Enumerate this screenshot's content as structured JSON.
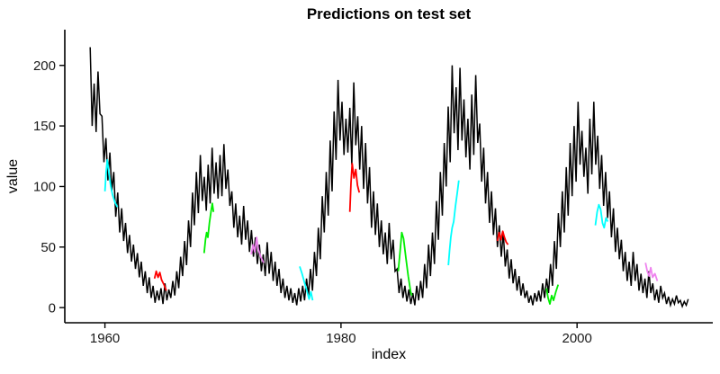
{
  "chart_data": {
    "type": "line",
    "title": "Predictions on test set",
    "xlabel": "index",
    "ylabel": "value",
    "xlim": [
      1956.6,
      2011.5
    ],
    "ylim": [
      -12.5,
      229.5
    ],
    "x_ticks": [
      1960,
      1980,
      2000
    ],
    "y_ticks": [
      0,
      50,
      100,
      150,
      200
    ],
    "grid": false,
    "legend": false,
    "axis_color": "#000000",
    "tick_label_color": "#1a1a1a",
    "series": [
      {
        "name": "observed",
        "color": "#000000",
        "x_start": 1958.75,
        "x_step": 0.166667,
        "values": [
          215,
          150,
          185,
          145,
          195,
          160,
          158,
          120,
          140,
          105,
          128,
          96,
          112,
          75,
          95,
          62,
          82,
          55,
          70,
          45,
          60,
          38,
          52,
          32,
          45,
          25,
          38,
          18,
          30,
          12,
          25,
          8,
          18,
          4,
          14,
          6,
          16,
          3,
          20,
          6,
          15,
          8,
          22,
          10,
          30,
          16,
          42,
          26,
          55,
          35,
          72,
          50,
          95,
          68,
          112,
          78,
          126,
          88,
          108,
          80,
          118,
          86,
          132,
          94,
          120,
          90,
          126,
          92,
          135,
          98,
          114,
          84,
          96,
          66,
          86,
          58,
          76,
          52,
          84,
          56,
          72,
          46,
          64,
          42,
          58,
          36,
          52,
          30,
          44,
          26,
          54,
          28,
          46,
          22,
          38,
          18,
          32,
          12,
          24,
          8,
          18,
          6,
          16,
          4,
          12,
          2,
          16,
          5,
          18,
          6,
          24,
          10,
          32,
          14,
          46,
          26,
          66,
          40,
          92,
          62,
          112,
          76,
          138,
          96,
          162,
          122,
          188,
          138,
          170,
          126,
          156,
          128,
          165,
          118,
          186,
          134,
          158,
          114,
          150,
          98,
          136,
          86,
          116,
          66,
          96,
          60,
          86,
          50,
          72,
          44,
          62,
          36,
          70,
          40,
          56,
          30,
          32,
          12,
          24,
          8,
          18,
          5,
          15,
          3,
          12,
          2,
          18,
          6,
          22,
          8,
          36,
          16,
          52,
          26,
          62,
          36,
          88,
          56,
          112,
          76,
          136,
          100,
          166,
          120,
          200,
          144,
          182,
          130,
          198,
          138,
          172,
          124,
          156,
          114,
          176,
          126,
          192,
          136,
          152,
          104,
          132,
          86,
          112,
          70,
          96,
          60,
          82,
          50,
          68,
          42,
          62,
          34,
          48,
          24,
          40,
          20,
          32,
          14,
          26,
          10,
          20,
          8,
          14,
          4,
          10,
          2,
          12,
          5,
          14,
          5,
          20,
          8,
          24,
          12,
          36,
          18,
          55,
          32,
          78,
          50,
          96,
          62,
          116,
          76,
          136,
          92,
          150,
          104,
          170,
          118,
          146,
          108,
          132,
          94,
          156,
          110,
          170,
          118,
          142,
          98,
          126,
          84,
          112,
          74,
          96,
          58,
          82,
          46,
          66,
          40,
          56,
          30,
          46,
          22,
          38,
          18,
          46,
          22,
          36,
          14,
          28,
          12,
          24,
          8,
          30,
          12,
          20,
          6,
          15,
          4,
          18,
          8,
          12,
          3,
          9,
          2,
          7,
          3,
          10,
          4,
          6,
          1,
          5,
          2,
          7
        ]
      }
    ],
    "predictions": [
      {
        "name": "cyan-1",
        "color": "#00FFFF",
        "points": [
          [
            1960.0,
            96
          ],
          [
            1960.1,
            112
          ],
          [
            1960.2,
            122
          ],
          [
            1960.35,
            110
          ],
          [
            1960.5,
            100
          ],
          [
            1960.65,
            93
          ],
          [
            1960.85,
            87
          ],
          [
            1961.05,
            83
          ]
        ]
      },
      {
        "name": "red-1",
        "color": "#FF0000",
        "points": [
          [
            1964.2,
            24
          ],
          [
            1964.35,
            30
          ],
          [
            1964.5,
            25
          ],
          [
            1964.65,
            29
          ],
          [
            1964.8,
            23
          ],
          [
            1965.0,
            19
          ],
          [
            1965.2,
            14
          ]
        ]
      },
      {
        "name": "green-1",
        "color": "#00EE00",
        "points": [
          [
            1968.4,
            45
          ],
          [
            1968.52,
            56
          ],
          [
            1968.62,
            62
          ],
          [
            1968.72,
            58
          ],
          [
            1968.85,
            70
          ],
          [
            1969.0,
            80
          ],
          [
            1969.1,
            86
          ],
          [
            1969.2,
            79
          ]
        ]
      },
      {
        "name": "violet-1",
        "color": "#EE82EE",
        "points": [
          [
            1972.4,
            44
          ],
          [
            1972.55,
            52
          ],
          [
            1972.7,
            46
          ],
          [
            1972.85,
            58
          ],
          [
            1973.0,
            48
          ],
          [
            1973.2,
            42
          ],
          [
            1973.45,
            37
          ]
        ]
      },
      {
        "name": "cyan-2",
        "color": "#00FFFF",
        "points": [
          [
            1976.5,
            34
          ],
          [
            1976.7,
            28
          ],
          [
            1976.9,
            21
          ],
          [
            1977.1,
            14
          ],
          [
            1977.3,
            7
          ],
          [
            1977.45,
            13
          ],
          [
            1977.6,
            6
          ]
        ]
      },
      {
        "name": "red-2",
        "color": "#FF0000",
        "points": [
          [
            1980.75,
            79
          ],
          [
            1980.85,
            103
          ],
          [
            1980.95,
            119
          ],
          [
            1981.1,
            107
          ],
          [
            1981.25,
            114
          ],
          [
            1981.4,
            101
          ],
          [
            1981.55,
            95
          ]
        ]
      },
      {
        "name": "green-2",
        "color": "#00EE00",
        "points": [
          [
            1984.85,
            30
          ],
          [
            1985.0,
            46
          ],
          [
            1985.15,
            62
          ],
          [
            1985.3,
            57
          ],
          [
            1985.5,
            41
          ],
          [
            1985.7,
            26
          ],
          [
            1985.9,
            13
          ],
          [
            1986.0,
            10
          ]
        ]
      },
      {
        "name": "cyan-3",
        "color": "#00FFFF",
        "points": [
          [
            1989.1,
            35
          ],
          [
            1989.2,
            47
          ],
          [
            1989.3,
            58
          ],
          [
            1989.42,
            66
          ],
          [
            1989.55,
            71
          ],
          [
            1989.7,
            84
          ],
          [
            1989.85,
            95
          ],
          [
            1989.98,
            105
          ]
        ]
      },
      {
        "name": "red-3",
        "color": "#FF0000",
        "points": [
          [
            1993.25,
            55
          ],
          [
            1993.4,
            62
          ],
          [
            1993.55,
            56
          ],
          [
            1993.7,
            63
          ],
          [
            1993.85,
            58
          ],
          [
            1994.0,
            54
          ],
          [
            1994.15,
            52
          ]
        ]
      },
      {
        "name": "green-3",
        "color": "#00EE00",
        "points": [
          [
            1997.4,
            16
          ],
          [
            1997.55,
            8
          ],
          [
            1997.7,
            3
          ],
          [
            1997.85,
            10
          ],
          [
            1998.0,
            6
          ],
          [
            1998.2,
            13
          ],
          [
            1998.4,
            19
          ]
        ]
      },
      {
        "name": "cyan-4",
        "color": "#00FFFF",
        "points": [
          [
            2001.55,
            68
          ],
          [
            2001.7,
            79
          ],
          [
            2001.85,
            85
          ],
          [
            2002.0,
            81
          ],
          [
            2002.15,
            70
          ],
          [
            2002.3,
            66
          ],
          [
            2002.45,
            74
          ],
          [
            2002.6,
            71
          ]
        ]
      },
      {
        "name": "violet-2",
        "color": "#EE82EE",
        "points": [
          [
            2005.8,
            37
          ],
          [
            2005.95,
            30
          ],
          [
            2006.1,
            26
          ],
          [
            2006.25,
            33
          ],
          [
            2006.4,
            25
          ],
          [
            2006.6,
            28
          ],
          [
            2006.8,
            22
          ]
        ]
      }
    ]
  }
}
